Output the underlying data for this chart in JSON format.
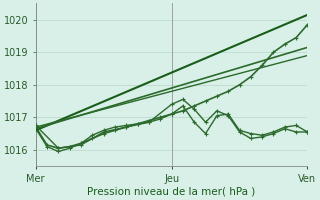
{
  "title": "Pression niveau de la mer( hPa )",
  "bg_color": "#cce8d8",
  "plot_bg": "#d8f0e8",
  "grid_color": "#b8d8c8",
  "xlim": [
    0,
    48
  ],
  "ylim": [
    1015.5,
    1020.5
  ],
  "yticks": [
    1016,
    1017,
    1018,
    1019,
    1020
  ],
  "xtick_labels": [
    "Mer",
    "Jeu",
    "Ven"
  ],
  "xtick_positions": [
    0,
    24,
    48
  ],
  "vlines": [
    0,
    24,
    48
  ],
  "series": [
    {
      "x": [
        0,
        2,
        4,
        6,
        8,
        10,
        12,
        14,
        16,
        18,
        20,
        22,
        24,
        26,
        28,
        30,
        32,
        34,
        36,
        38,
        40,
        42,
        44,
        46,
        48
      ],
      "y": [
        1016.7,
        1016.15,
        1016.05,
        1016.1,
        1016.2,
        1016.35,
        1016.5,
        1016.6,
        1016.7,
        1016.8,
        1016.9,
        1017.0,
        1017.1,
        1017.2,
        1017.35,
        1017.5,
        1017.65,
        1017.8,
        1018.0,
        1018.25,
        1018.6,
        1019.0,
        1019.25,
        1019.45,
        1019.85
      ],
      "color": "#2d6a2d",
      "lw": 1.2,
      "marker": "+"
    },
    {
      "x": [
        0,
        2,
        4,
        6,
        8,
        10,
        12,
        14,
        16,
        18,
        20,
        22,
        24,
        26,
        28,
        30,
        32,
        34,
        36,
        38,
        40,
        42,
        44,
        46,
        48
      ],
      "y": [
        1016.65,
        1016.1,
        1015.95,
        1016.05,
        1016.2,
        1016.45,
        1016.6,
        1016.7,
        1016.75,
        1016.8,
        1016.85,
        1016.95,
        1017.1,
        1017.35,
        1016.85,
        1016.5,
        1017.05,
        1017.1,
        1016.6,
        1016.5,
        1016.45,
        1016.55,
        1016.7,
        1016.75,
        1016.55
      ],
      "color": "#2d6a2d",
      "lw": 1.0,
      "marker": "+"
    },
    {
      "x": [
        0,
        48
      ],
      "y": [
        1016.6,
        1020.15
      ],
      "color": "#1a5c1a",
      "lw": 1.5,
      "marker": null
    },
    {
      "x": [
        0,
        48
      ],
      "y": [
        1016.65,
        1019.15
      ],
      "color": "#2a6a2a",
      "lw": 1.2,
      "marker": null
    },
    {
      "x": [
        0,
        48
      ],
      "y": [
        1016.7,
        1018.9
      ],
      "color": "#2a6a2a",
      "lw": 1.0,
      "marker": null
    },
    {
      "x": [
        0,
        4,
        8,
        12,
        16,
        20,
        24,
        26,
        28,
        30,
        32,
        34,
        36,
        38,
        40,
        42,
        44,
        46,
        48
      ],
      "y": [
        1016.75,
        1016.05,
        1016.15,
        1016.55,
        1016.7,
        1016.85,
        1017.4,
        1017.55,
        1017.25,
        1016.85,
        1017.2,
        1017.05,
        1016.55,
        1016.35,
        1016.4,
        1016.5,
        1016.65,
        1016.55,
        1016.55
      ],
      "color": "#2d6a2d",
      "lw": 1.0,
      "marker": "+"
    }
  ]
}
